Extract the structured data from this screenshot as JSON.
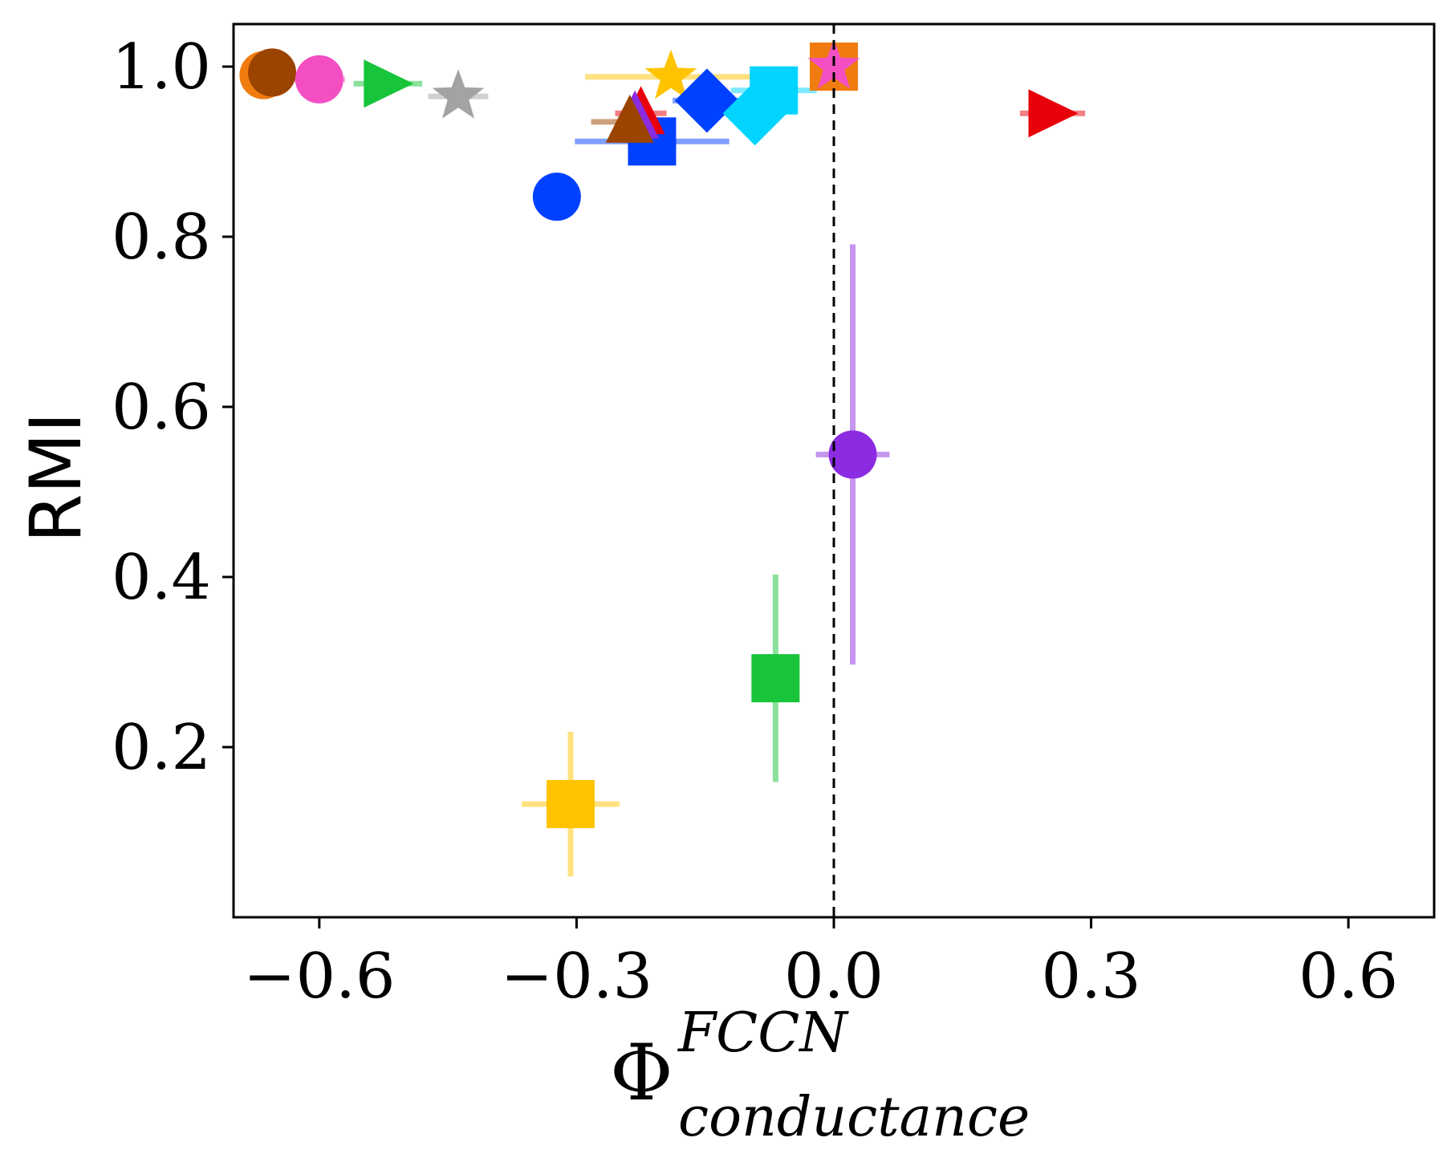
{
  "chart_data": {
    "type": "scatter",
    "title": "",
    "xlabel": {
      "symbol": "Φ",
      "superscript": "FCCN",
      "subscript": "conductance"
    },
    "ylabel": "RMI",
    "xlim": [
      -0.7,
      0.7
    ],
    "ylim": [
      0.0,
      1.05
    ],
    "xticks": [
      -0.6,
      -0.3,
      0.0,
      0.3,
      0.6
    ],
    "xtick_labels": [
      "−0.6",
      "−0.3",
      "0.0",
      "0.3",
      "0.6"
    ],
    "yticks": [
      0.2,
      0.4,
      0.6,
      0.8,
      1.0
    ],
    "ytick_labels": [
      "0.2",
      "0.4",
      "0.6",
      "0.8",
      "1.0"
    ],
    "reference_line": {
      "axis": "x",
      "value": 0.0,
      "style": "dashed",
      "color": "#000000"
    },
    "grid": false,
    "points": [
      {
        "x": -0.665,
        "y": 0.99,
        "marker": "circle",
        "color": "#f07c10",
        "xerr": 0.0,
        "yerr": 0.0
      },
      {
        "x": -0.655,
        "y": 0.993,
        "marker": "circle",
        "color": "#9b4400",
        "xerr": 0.0,
        "yerr": 0.0
      },
      {
        "x": -0.6,
        "y": 0.985,
        "marker": "circle",
        "color": "#f34fc3",
        "xerr": 0.03,
        "yerr": 0.0
      },
      {
        "x": -0.52,
        "y": 0.98,
        "marker": "triangle-right",
        "color": "#18c43a",
        "xerr": 0.04,
        "yerr": 0.0
      },
      {
        "x": -0.438,
        "y": 0.965,
        "marker": "star",
        "color": "#a3a3a3",
        "xerr": 0.035,
        "yerr": 0.0
      },
      {
        "x": -0.323,
        "y": 0.847,
        "marker": "circle",
        "color": "#0040ff",
        "xerr": 0.0,
        "yerr": 0.0
      },
      {
        "x": -0.19,
        "y": 0.988,
        "marker": "star",
        "color": "#ffc300",
        "xerr": 0.1,
        "yerr": 0.0
      },
      {
        "x": -0.148,
        "y": 0.96,
        "marker": "diamond",
        "color": "#0040ff",
        "xerr": 0.04,
        "yerr": 0.0
      },
      {
        "x": -0.07,
        "y": 0.972,
        "marker": "square",
        "color": "#00d4ff",
        "xerr": 0.05,
        "yerr": 0.0
      },
      {
        "x": -0.092,
        "y": 0.945,
        "marker": "diamond",
        "color": "#00d4ff",
        "xerr": 0.03,
        "yerr": 0.0
      },
      {
        "x": -0.212,
        "y": 0.912,
        "marker": "square",
        "color": "#0040ff",
        "xerr": 0.09,
        "yerr": 0.0
      },
      {
        "x": -0.225,
        "y": 0.945,
        "marker": "triangle-up",
        "color": "#e8000b",
        "xerr": 0.03,
        "yerr": 0.0
      },
      {
        "x": -0.232,
        "y": 0.94,
        "marker": "triangle-up",
        "color": "#8b2be2",
        "xerr": 0.0,
        "yerr": 0.0
      },
      {
        "x": -0.238,
        "y": 0.935,
        "marker": "triangle-up",
        "color": "#9b4400",
        "xerr": 0.045,
        "yerr": 0.0
      },
      {
        "x": 0.0,
        "y": 1.0,
        "marker": "square",
        "color": "#f07c10",
        "xerr": 0.0,
        "yerr": 0.0
      },
      {
        "x": 0.0,
        "y": 1.0,
        "marker": "star",
        "color": "#f34fc3",
        "xerr": 0.0,
        "yerr": 0.0
      },
      {
        "x": 0.255,
        "y": 0.945,
        "marker": "triangle-right",
        "color": "#e8000b",
        "xerr": 0.038,
        "yerr": 0.0
      },
      {
        "x": 0.022,
        "y": 0.544,
        "marker": "circle",
        "color": "#8b2be2",
        "xerr": 0.043,
        "yerr": 0.247
      },
      {
        "x": -0.068,
        "y": 0.281,
        "marker": "square",
        "color": "#18c43a",
        "xerr": 0.0,
        "yerr": 0.122
      },
      {
        "x": -0.307,
        "y": 0.133,
        "marker": "square",
        "color": "#ffc300",
        "xerr": 0.057,
        "yerr": 0.085
      }
    ]
  }
}
